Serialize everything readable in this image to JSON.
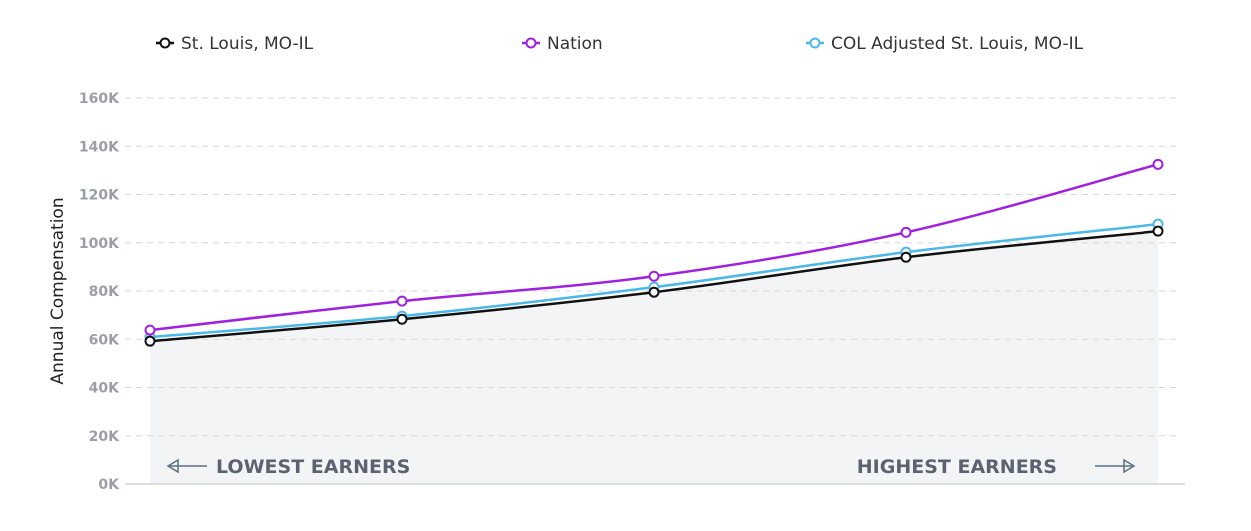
{
  "chart_data": {
    "type": "line",
    "title": "",
    "xlabel": "",
    "ylabel": "Annual Compensation",
    "ylim": [
      0,
      160000
    ],
    "yticks": [
      "0K",
      "20K",
      "40K",
      "60K",
      "80K",
      "100K",
      "120K",
      "140K",
      "160K"
    ],
    "grid": true,
    "legend_position": "top",
    "x_annotations": {
      "left": "LOWEST EARNERS",
      "right": "HIGHEST EARNERS"
    },
    "series": [
      {
        "name": "St. Louis, MO-IL",
        "color": "#111111",
        "values": [
          59200,
          68300,
          79500,
          94000,
          104800
        ],
        "filled": true
      },
      {
        "name": "Nation",
        "color": "#a020e0",
        "values": [
          63800,
          75800,
          86100,
          104300,
          132500
        ]
      },
      {
        "name": "COL Adjusted St. Louis, MO-IL",
        "color": "#4bb8e8",
        "values": [
          60900,
          69600,
          81600,
          96100,
          107700
        ]
      }
    ]
  }
}
